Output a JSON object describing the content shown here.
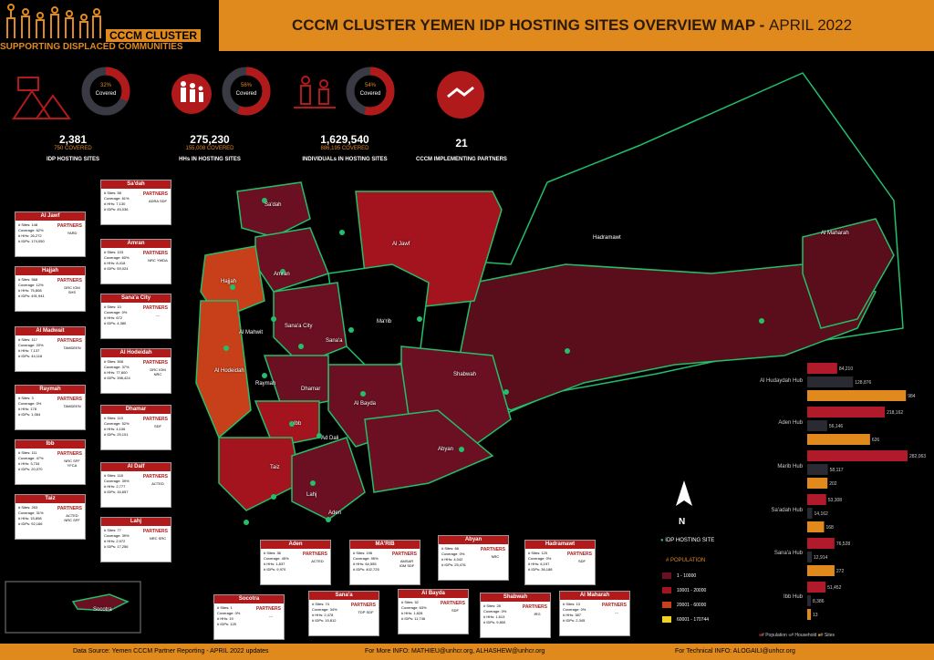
{
  "header": {
    "cluster_title": "CCCM CLUSTER",
    "cluster_subtitle": "SUPPORTING DISPLACED COMMUNITIES",
    "map_title": "CCCM CLUSTER YEMEN IDP HOSTING SITES OVERVIEW MAP  - ",
    "map_month": "APRIL 2022"
  },
  "stats": [
    {
      "icon": "tents-icon",
      "pct_label": "32%",
      "covered": "Covered",
      "fraction": 0.32,
      "number": "2,381",
      "covered_line": "750 COVERED",
      "label": "IDP HOSTING SITES"
    },
    {
      "icon": "family-icon",
      "pct_label": "56%",
      "covered": "Covered",
      "fraction": 0.56,
      "number": "275,230",
      "covered_line": "155,008 COVERED",
      "label": "HHs IN HOSTING SITES"
    },
    {
      "icon": "people-icon",
      "pct_label": "54%",
      "covered": "Covered",
      "fraction": 0.54,
      "number": "1,629,540",
      "covered_line": "886,195 COVERED",
      "label": "INDIVIDUALs IN HOSTING SITES"
    },
    {
      "icon": "handshake-icon",
      "number": "21",
      "label": "CCCM IMPLEMENTING PARTNERS"
    }
  ],
  "hub_boxes": [
    {
      "name": "Al Jawf",
      "sites": "148",
      "cov": "62%",
      "hhs": "26,272",
      "idps": "174,050",
      "partners": "YARD"
    },
    {
      "name": "Hajjah",
      "sites": "568",
      "cov": "12%",
      "hhs": "75,808",
      "idps": "491,941",
      "partners": "DRC\nIOM\nSHS"
    },
    {
      "name": "Al Madwait",
      "sites": "117",
      "cov": "20%",
      "hhs": "7,137",
      "idps": "44,116",
      "partners": "TAMDEEN"
    },
    {
      "name": "Raymah",
      "sites": "3",
      "cov": "0%",
      "hhs": "178",
      "idps": "1,064",
      "partners": "TAMDEEN"
    },
    {
      "name": "Ibb",
      "sites": "111",
      "cov": "47%",
      "hhs": "3,734",
      "idps": "20,070",
      "partners": "NRC\nSFF\nYFCA"
    },
    {
      "name": "Taiz",
      "sites": "263",
      "cov": "31%",
      "hhs": "15,898",
      "idps": "92,166",
      "partners": "ACTED\nNRC\nSFF"
    },
    {
      "name": "Sa'dah",
      "sites": "58",
      "cov": "61%",
      "hhs": "7,130",
      "idps": "45,036",
      "partners": "ADRA\nSDF"
    },
    {
      "name": "Amran",
      "sites": "103",
      "cov": "60%",
      "hhs": "8,418",
      "idps": "59,024",
      "partners": "NRC\nYWDA"
    },
    {
      "name": "Sana'a City",
      "sites": "10",
      "cov": "0%",
      "hhs": "672",
      "idps": "4,380",
      "partners": "---"
    },
    {
      "name": "Al Hodeidah",
      "sites": "506",
      "cov": "37%",
      "hhs": "77,600",
      "idps": "398,424",
      "partners": "DRC\nIOM\nNRC"
    },
    {
      "name": "Dhamar",
      "sites": "115",
      "cov": "52%",
      "hhs": "4,106",
      "idps": "25,101",
      "partners": "SDF"
    },
    {
      "name": "Al Dalf",
      "sites": "118",
      "cov": "39%",
      "hhs": "2,777",
      "idps": "16,657",
      "partners": "ACTED"
    },
    {
      "name": "Lahj",
      "sites": "77",
      "cov": "39%",
      "hhs": "2,972",
      "idps": "17,256",
      "partners": "NRC\nSRC"
    },
    {
      "name": "Aden",
      "sites": "36",
      "cov": "45%",
      "hhs": "1,837",
      "idps": "9,970",
      "partners": "ACTED"
    },
    {
      "name": "MA'RIB",
      "sites": "196",
      "cov": "95%",
      "hhs": "64,555",
      "idps": "402,725",
      "partners": "AMSAR\nIOM\nSDF"
    },
    {
      "name": "Abyan",
      "sites": "66",
      "cov": "0%",
      "hhs": "4,042",
      "idps": "25,476",
      "partners": "NRC"
    },
    {
      "name": "Hadramawt",
      "sites": "120",
      "cov": "0%",
      "hhs": "6,197",
      "idps": "36,188",
      "partners": "SDF"
    },
    {
      "name": "Socotra",
      "sites": "1",
      "cov": "0%",
      "hhs": "19",
      "idps": "125",
      "partners": "---"
    },
    {
      "name": "Sana'a",
      "sites": "74",
      "cov": "34%",
      "hhs": "2,478",
      "idps": "15,812",
      "partners": "TDP\nSDF"
    },
    {
      "name": "Al Bayda",
      "sites": "52",
      "cov": "63%",
      "hhs": "1,828",
      "idps": "11,746",
      "partners": "SDF"
    },
    {
      "name": "Shabwah",
      "sites": "28",
      "cov": "0%",
      "hhs": "1,613",
      "idps": "9,800",
      "partners": "IRG"
    },
    {
      "name": "Al Maharah",
      "sites": "13",
      "cov": "0%",
      "hhs": "387",
      "idps": "2,345",
      "partners": "---"
    }
  ],
  "places": [
    "Sa'dah",
    "Al Jawf",
    "Amran",
    "Hajjah",
    "Sana'a City",
    "Al Mahwit",
    "Sana'a",
    "Ma'rib",
    "Al Hodeidah",
    "Raymah",
    "Dhamar",
    "Al Bayda",
    "Shabwah",
    "Ibb",
    "Ad Dali",
    "Abyan",
    "Taiz",
    "Lahj",
    "Aden",
    "Hadramawt",
    "Al Maharah",
    "Socotra"
  ],
  "chart_data": {
    "type": "bar",
    "categories": [
      "Al Hudaydah Hub",
      "Aden Hub",
      "Marib Hub",
      "Sa'adah Hub",
      "Sana'a Hub",
      "Ibb Hub"
    ],
    "series": [
      {
        "name": "# Population",
        "values": [
          84210,
          218162,
          282063,
          53308,
          76528,
          51452
        ],
        "labels": [
          "84,210",
          "218,162",
          "282,063",
          "53,308",
          "76,528",
          "51,452"
        ]
      },
      {
        "name": "# Household",
        "values": [
          128876,
          56146,
          58117,
          14162,
          12914,
          8386
        ],
        "labels": [
          "128,876",
          "56,146",
          "58,117",
          "14,162",
          "12,914",
          "8,386"
        ]
      },
      {
        "name": "# Sites",
        "values": [
          984,
          626,
          202,
          168,
          272,
          13
        ],
        "labels": [
          "984",
          "626",
          "202",
          "168",
          "272",
          "13"
        ]
      }
    ],
    "colors": {
      "population": "#b11a2a",
      "household": "#2a2a33",
      "sites": "#e08a1e"
    }
  },
  "north": "N",
  "legend": {
    "idp_site": "IDP HOSTING SITE",
    "title": "# POPULATION",
    "items": [
      {
        "label": "1 - 10000",
        "color": "#6b1022"
      },
      {
        "label": "10001 - 20000",
        "color": "#a3141f"
      },
      {
        "label": "20001 - 60000",
        "color": "#c8401a"
      },
      {
        "label": "60001 - 170744",
        "color": "#f1d21e"
      }
    ]
  },
  "footer": {
    "source": "Data Source: Yemen CCCM Partner Reporting  - APRIL 2022 updates",
    "more_info": "For More INFO: MATHIEU@unhcr.org, ALHASHEW@unhcr.org",
    "tech_info": "For Technical INFO: ALOGAILI@unhcr.org"
  }
}
